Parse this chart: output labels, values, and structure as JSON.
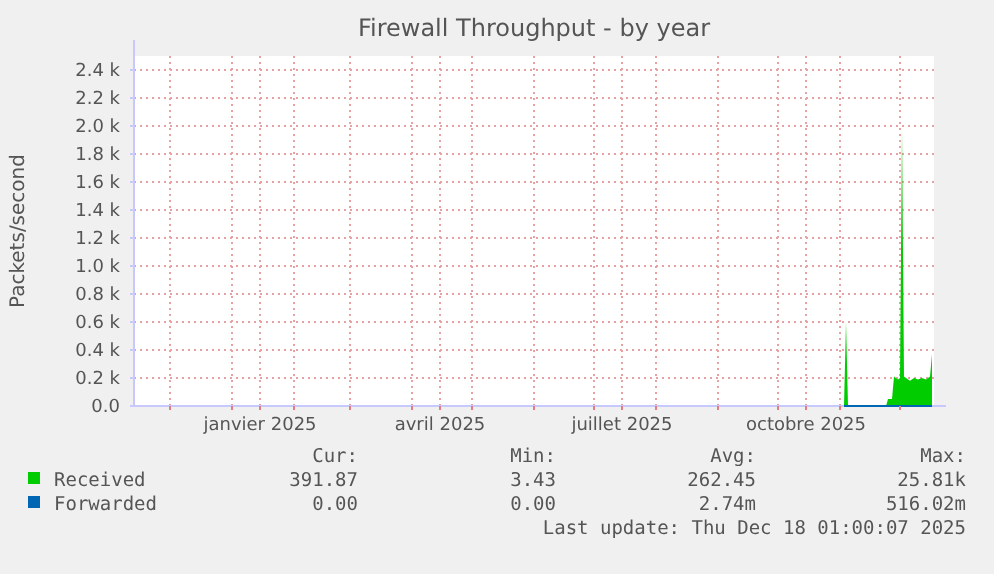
{
  "chart_data": {
    "type": "area",
    "title": "Firewall Throughput - by year",
    "ylabel": "Packets/second",
    "x": [
      "2025-11-03",
      "2025-11-04",
      "2025-11-05",
      "2025-11-24",
      "2025-11-25",
      "2025-11-27",
      "2025-11-28",
      "2025-11-29",
      "2025-11-30",
      "2025-12-01",
      "2025-12-02",
      "2025-12-03",
      "2025-12-04",
      "2025-12-06",
      "2025-12-08",
      "2025-12-10",
      "2025-12-12",
      "2025-12-14",
      "2025-12-16",
      "2025-12-17"
    ],
    "series": [
      {
        "name": "Received",
        "color": "#00cc00",
        "values": [
          0,
          600,
          0,
          0,
          50,
          50,
          210,
          200,
          190,
          200,
          1980,
          210,
          200,
          180,
          200,
          190,
          200,
          190,
          210,
          370
        ]
      },
      {
        "name": "Forwarded",
        "color": "#0066b3",
        "type": "line",
        "values": [
          0,
          0,
          0,
          0,
          0,
          0,
          0,
          0,
          0,
          0,
          0,
          0,
          0,
          0,
          0,
          0,
          0,
          0,
          0,
          0
        ]
      }
    ],
    "xlim": [
      "2024-11-13",
      "2025-12-18"
    ],
    "xticks": [
      {
        "value": "2024-12-01",
        "label": null
      },
      {
        "value": "2025-01-01",
        "label": null
      },
      {
        "value": "2025-01-15",
        "label": "janvier 2025"
      },
      {
        "value": "2025-02-01",
        "label": null
      },
      {
        "value": "2025-03-01",
        "label": null
      },
      {
        "value": "2025-04-01",
        "label": null
      },
      {
        "value": "2025-04-15",
        "label": "avril 2025"
      },
      {
        "value": "2025-05-01",
        "label": null
      },
      {
        "value": "2025-06-01",
        "label": null
      },
      {
        "value": "2025-07-01",
        "label": null
      },
      {
        "value": "2025-07-15",
        "label": "juillet 2025"
      },
      {
        "value": "2025-08-01",
        "label": null
      },
      {
        "value": "2025-09-01",
        "label": null
      },
      {
        "value": "2025-10-01",
        "label": null
      },
      {
        "value": "2025-10-15",
        "label": "octobre 2025"
      },
      {
        "value": "2025-11-01",
        "label": null
      },
      {
        "value": "2025-12-01",
        "label": null
      }
    ],
    "ylim": [
      0,
      2500
    ],
    "yticks": [
      {
        "value": 0,
        "label": "0.0"
      },
      {
        "value": 200,
        "label": "0.2 k"
      },
      {
        "value": 400,
        "label": "0.4 k"
      },
      {
        "value": 600,
        "label": "0.6 k"
      },
      {
        "value": 800,
        "label": "0.8 k"
      },
      {
        "value": 1000,
        "label": "1.0 k"
      },
      {
        "value": 1200,
        "label": "1.2 k"
      },
      {
        "value": 1400,
        "label": "1.4 k"
      },
      {
        "value": 1600,
        "label": "1.6 k"
      },
      {
        "value": 1800,
        "label": "1.8 k"
      },
      {
        "value": 2000,
        "label": "2.0 k"
      },
      {
        "value": 2200,
        "label": "2.2 k"
      },
      {
        "value": 2400,
        "label": "2.4 k"
      }
    ],
    "grid": true,
    "legend": "bottom left",
    "annotations": [
      "Cur:",
      "Min:",
      "Avg:",
      "Max:",
      "391.87",
      "3.43",
      "262.45",
      "25.81k",
      "0.00",
      "0.00",
      "2.74m",
      "516.02m",
      "Last update: Thu Dec 18 01:00:07 2025"
    ]
  }
}
